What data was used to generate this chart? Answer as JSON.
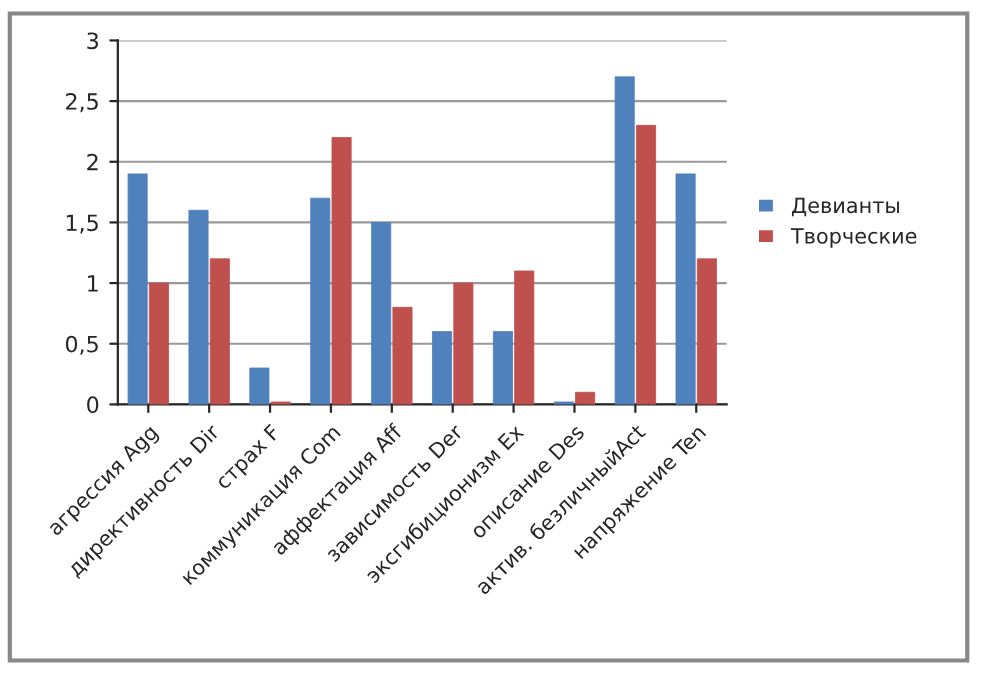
{
  "chart_data": {
    "type": "bar",
    "categories": [
      "агрессия Agg",
      "директивность Dir",
      "страх F",
      "коммуникация Com",
      "аффектация Aff",
      "зависимость Der",
      "эксгибиционизм Ex",
      "описание Des",
      "актив. безличныйAct",
      "напряжение Ten"
    ],
    "series": [
      {
        "name": "Девианты",
        "color": "#4f81bd",
        "values": [
          1.9,
          1.6,
          0.3,
          1.7,
          1.5,
          0.6,
          0.6,
          0.02,
          2.7,
          1.9
        ]
      },
      {
        "name": "Творческие",
        "color": "#c0504d",
        "values": [
          1.0,
          1.2,
          0.02,
          2.2,
          0.8,
          1.0,
          1.1,
          0.1,
          2.3,
          1.2
        ]
      }
    ],
    "ylim": [
      0,
      3
    ],
    "yticks": [
      0,
      {
        "value": 0.5,
        "label": "0,5"
      },
      1,
      {
        "value": 1.5,
        "label": "1,5"
      },
      2,
      {
        "value": 2.5,
        "label": "2,5"
      },
      3
    ],
    "grid": "y",
    "legend": "right"
  }
}
